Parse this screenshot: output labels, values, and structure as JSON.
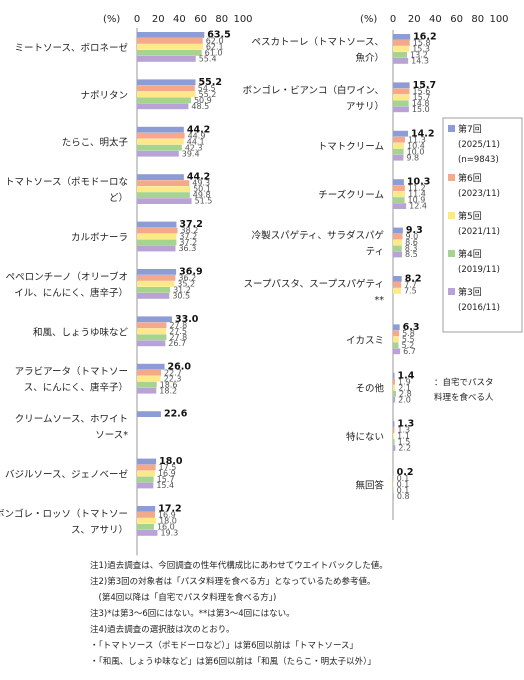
{
  "chart_data": {
    "type": "bar",
    "orientation": "horizontal",
    "unit_label": "(%)",
    "xlim": [
      0,
      100
    ],
    "ticks": [
      0,
      20,
      40,
      60,
      80,
      100
    ],
    "series": [
      {
        "name": "第7回",
        "sub": [
          "(2025/11)",
          "(n=9843)"
        ],
        "color": "#8e9cd6"
      },
      {
        "name": "第6回",
        "sub": [
          "(2023/11)"
        ],
        "color": "#f4a98a"
      },
      {
        "name": "第5回",
        "sub": [
          "(2021/11)"
        ],
        "color": "#fde98a"
      },
      {
        "name": "第4回",
        "sub": [
          "(2019/11)"
        ],
        "color": "#a6d48f"
      },
      {
        "name": "第3回",
        "sub": [
          "(2016/11)"
        ],
        "color": "#b9a3d6"
      }
    ],
    "left_panel": [
      {
        "label": [
          "ミートソース、ボロネーゼ"
        ],
        "values": [
          63.5,
          62.0,
          62.1,
          61.0,
          55.4
        ]
      },
      {
        "label": [
          "ナポリタン"
        ],
        "values": [
          55.2,
          54.5,
          55.2,
          50.9,
          48.5
        ]
      },
      {
        "label": [
          "たらこ、明太子"
        ],
        "values": [
          44.2,
          44.9,
          44.1,
          42.3,
          39.4
        ]
      },
      {
        "label": [
          "トマトソース（ポモドーロな",
          "ど）"
        ],
        "values": [
          44.2,
          49.3,
          50.1,
          49.8,
          51.5
        ]
      },
      {
        "label": [
          "カルボナーラ"
        ],
        "values": [
          37.2,
          38.2,
          37.2,
          37.2,
          36.3
        ]
      },
      {
        "label": [
          "ペペロンチーノ（オリーブオ",
          "イル、にんにく、唐辛子）"
        ],
        "values": [
          36.9,
          36.2,
          35.2,
          31.2,
          30.5
        ]
      },
      {
        "label": [
          "和風、しょうゆ味など"
        ],
        "values": [
          33.0,
          27.8,
          27.5,
          27.8,
          26.7
        ]
      },
      {
        "label": [
          "アラビアータ（トマトソー",
          "ス、にんにく、唐辛子）"
        ],
        "values": [
          26.0,
          22.7,
          22.3,
          18.6,
          18.2
        ]
      },
      {
        "label": [
          "クリームソース、ホワイト",
          "ソース*"
        ],
        "values": [
          22.6,
          null,
          null,
          null,
          null
        ]
      },
      {
        "label": [
          "バジルソース、ジェノベーゼ"
        ],
        "values": [
          18.0,
          17.5,
          16.9,
          15.7,
          15.4
        ]
      },
      {
        "label": [
          "ボンゴレ・ロッソ（トマトソー",
          "ス、アサリ）"
        ],
        "values": [
          17.2,
          16.9,
          18.0,
          16.0,
          19.3
        ]
      }
    ],
    "right_panel": [
      {
        "label": [
          "ペスカトーレ（トマトソース、",
          "魚介）"
        ],
        "values": [
          16.2,
          15.8,
          15.3,
          13.2,
          14.3
        ]
      },
      {
        "label": [
          "ボンゴレ・ビアンコ（白ワイン、",
          "アサリ）"
        ],
        "values": [
          15.7,
          15.6,
          15.7,
          14.8,
          15.0
        ]
      },
      {
        "label": [
          "トマトクリーム"
        ],
        "values": [
          14.2,
          11.3,
          10.4,
          10.0,
          9.8
        ]
      },
      {
        "label": [
          "チーズクリーム"
        ],
        "values": [
          10.3,
          11.2,
          11.4,
          10.9,
          12.4
        ]
      },
      {
        "label": [
          "冷製スパゲティ、サラダスパゲ",
          "ティ"
        ],
        "values": [
          9.3,
          9.0,
          8.6,
          8.3,
          8.5
        ]
      },
      {
        "label": [
          "スープパスタ、スープスパゲティ",
          "**"
        ],
        "values": [
          8.2,
          7.7,
          7.5,
          null,
          null
        ]
      },
      {
        "label": [
          "イカスミ"
        ],
        "values": [
          6.3,
          5.8,
          5.5,
          5.2,
          6.7
        ]
      },
      {
        "label": [
          "その他"
        ],
        "values": [
          1.4,
          1.9,
          2.1,
          2.8,
          2.0
        ]
      },
      {
        "label": [
          "特にない"
        ],
        "values": [
          1.3,
          1.3,
          1.1,
          1.5,
          2.2
        ]
      },
      {
        "label": [
          "無回答"
        ],
        "values": [
          0.2,
          0.1,
          0.1,
          0.1,
          0.8
        ]
      }
    ]
  },
  "legend_note": [
    "：自宅でパスタ",
    "料理を食べる人"
  ],
  "notes": [
    "注1)過去調査は、今回調査の性年代構成比にあわせてウエイトバックした値。",
    "注2)第3回の対象者は「パスタ料理を食べる方」となっているため参考値。",
    "　(第4回以降は「自宅でパスタ料理を食べる方」)",
    "注3)*は第3～6回にはない。**は第3～4回にはない。",
    "注4)過去調査の選択肢は次のとおり。",
    "・「トマトソース（ポモドーロなど）」は第6回以前は「トマトソース」",
    "・「和風、しょうゆ味など」は第6回以前は「和風（たらこ・明太子以外）」"
  ]
}
